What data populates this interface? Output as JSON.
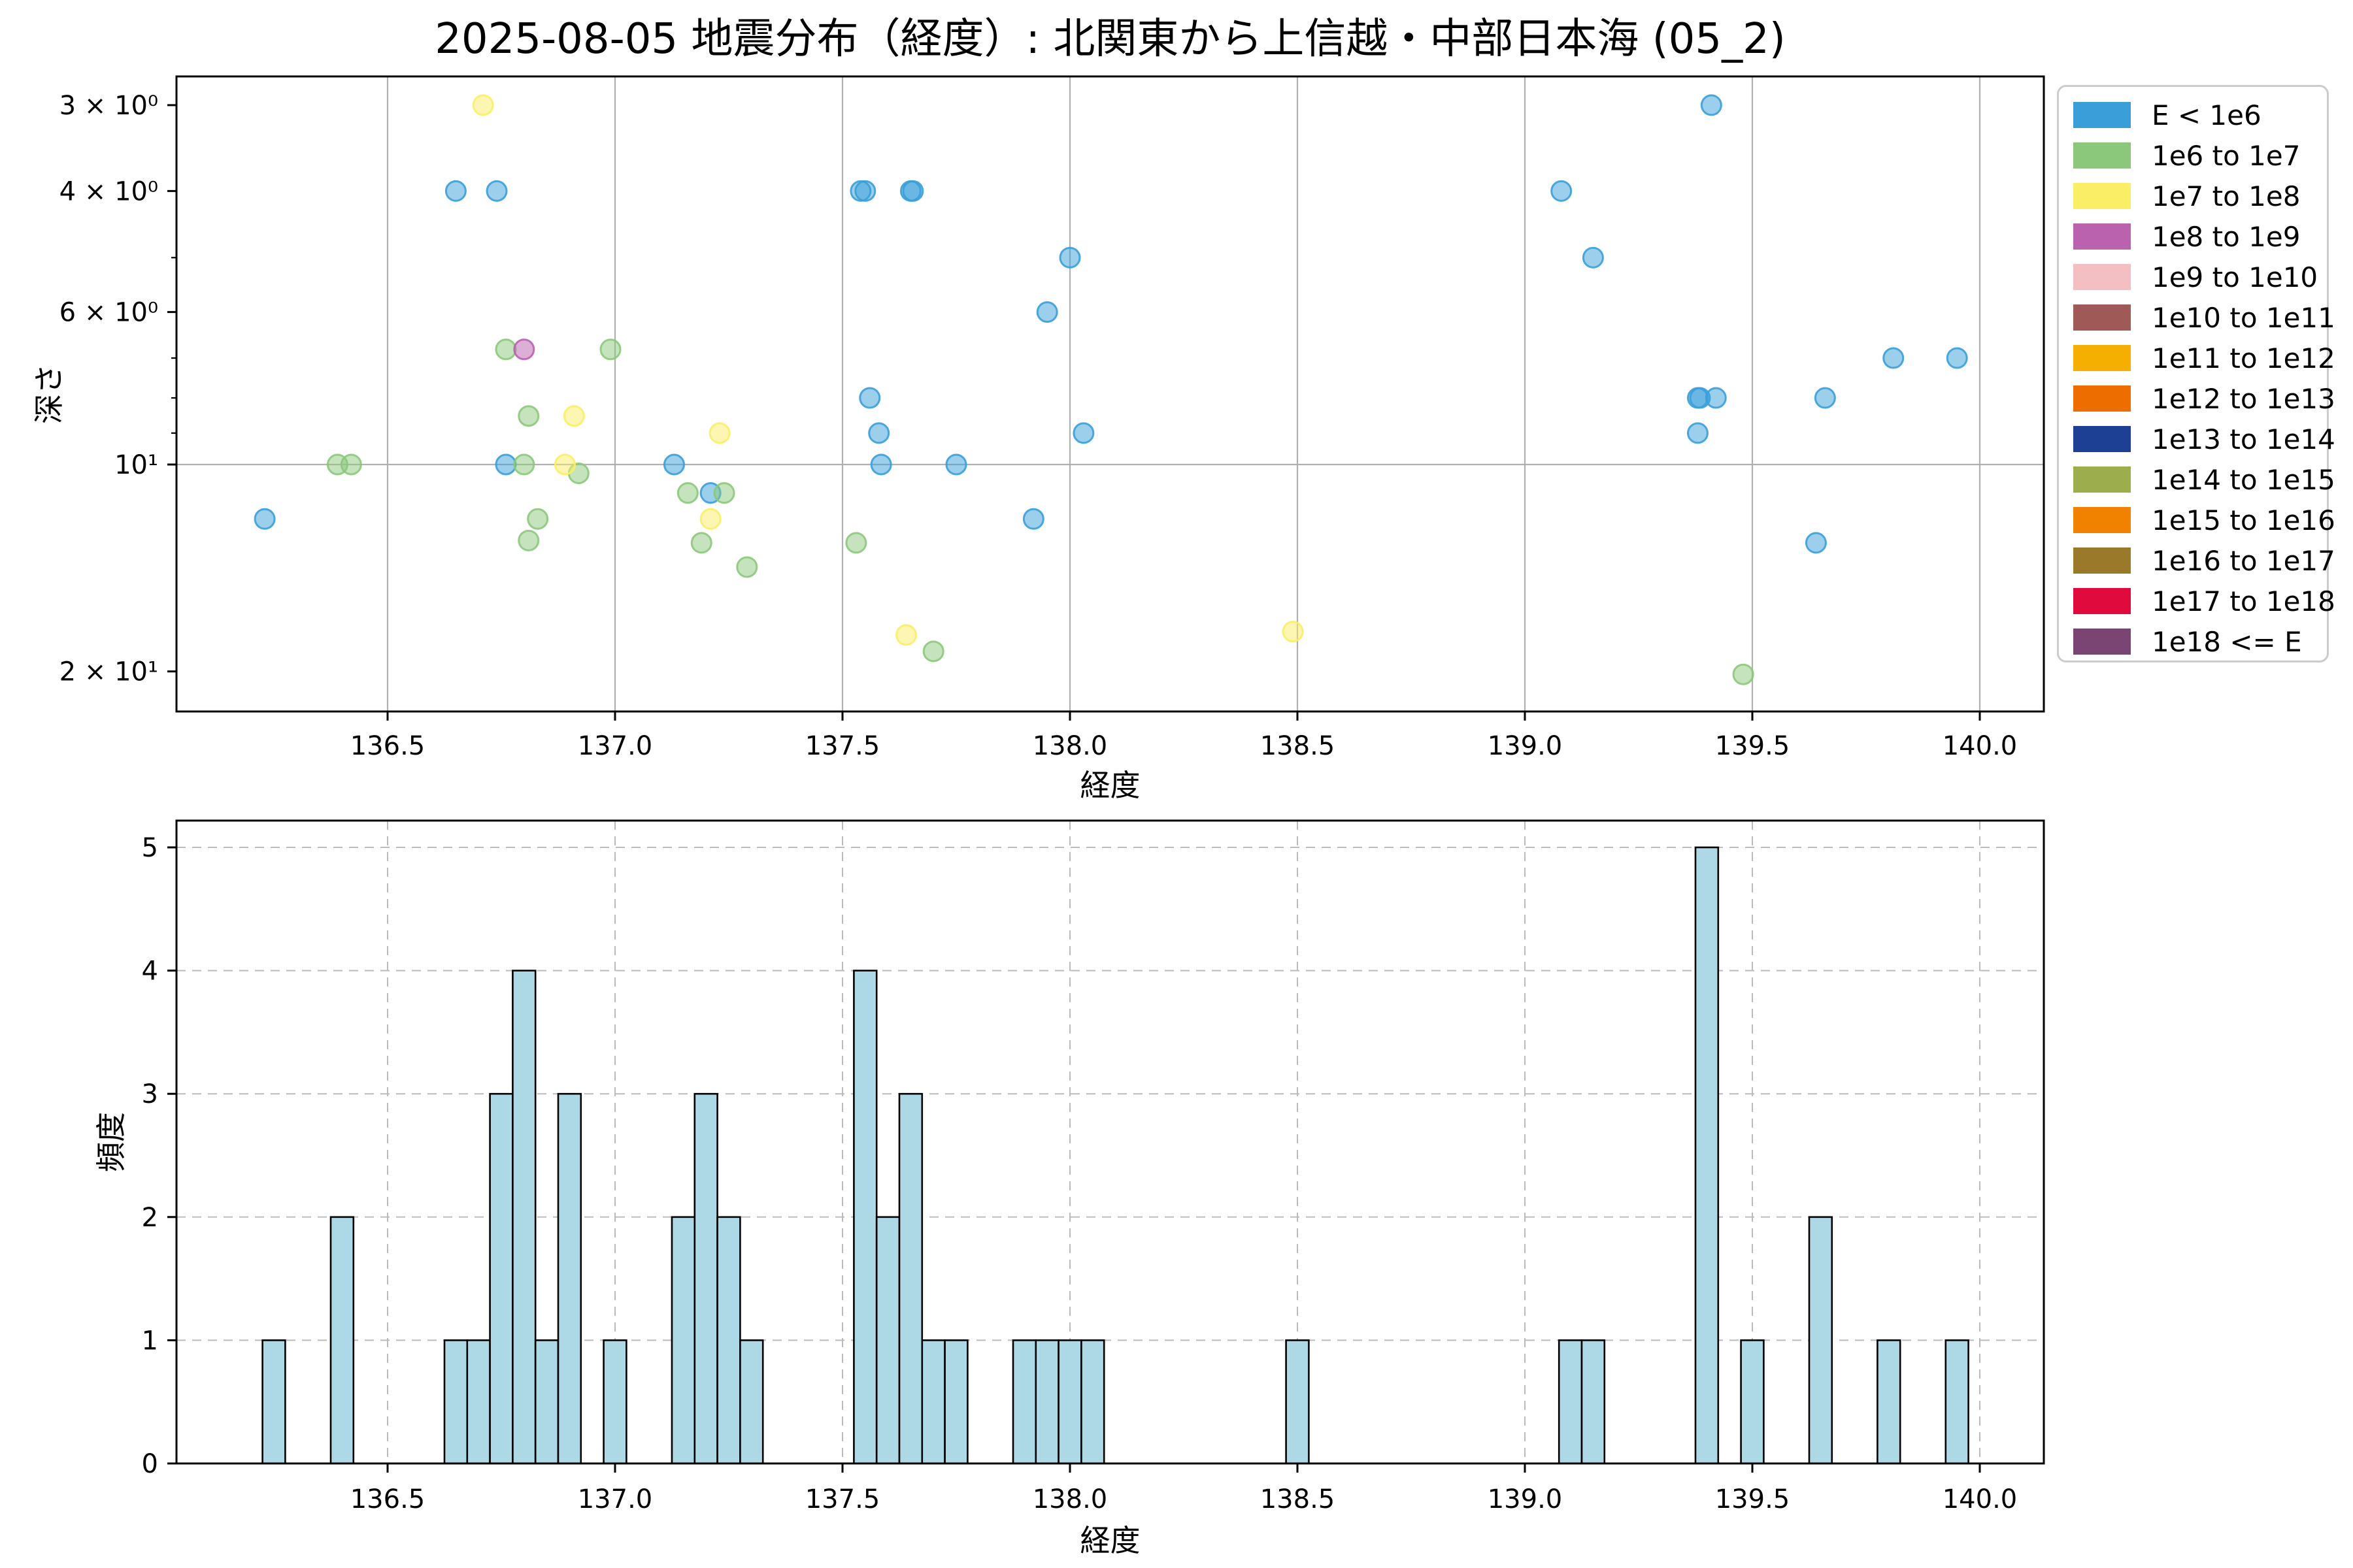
{
  "title": "2025-08-05 地震分布（経度）: 北関東から上信越・中部日本海 (05_2)",
  "legend": {
    "entries": [
      {
        "label": "E < 1e6",
        "color": "#3A9FD9"
      },
      {
        "label": "1e6 to 1e7",
        "color": "#8CC87B"
      },
      {
        "label": "1e7 to 1e8",
        "color": "#FBEE67"
      },
      {
        "label": "1e8 to 1e9",
        "color": "#BA62AE"
      },
      {
        "label": "1e9 to 1e10",
        "color": "#F4BFC2"
      },
      {
        "label": "1e10 to 1e11",
        "color": "#9F5A58"
      },
      {
        "label": "1e11 to 1e12",
        "color": "#F4AF00"
      },
      {
        "label": "1e12 to 1e13",
        "color": "#ED6D00"
      },
      {
        "label": "1e13 to 1e14",
        "color": "#1E4094"
      },
      {
        "label": "1e14 to 1e15",
        "color": "#9BAD4D"
      },
      {
        "label": "1e15 to 1e16",
        "color": "#F08200"
      },
      {
        "label": "1e16 to 1e17",
        "color": "#9A7A2A"
      },
      {
        "label": "1e17 to 1e18",
        "color": "#E00A3C"
      },
      {
        "label": "1e18 <= E",
        "color": "#7A4473"
      }
    ]
  },
  "chart_data": [
    {
      "type": "scatter",
      "xlabel": "経度",
      "ylabel": "深さ",
      "x_ticks": [
        136.5,
        137.0,
        137.5,
        138.0,
        138.5,
        139.0,
        139.5,
        140.0
      ],
      "x_tick_labels": [
        "136.5",
        "137.0",
        "137.5",
        "138.0",
        "138.5",
        "139.0",
        "139.5",
        "140.0"
      ],
      "xlim": [
        136.035,
        140.14
      ],
      "y_scale": "log-inverted",
      "ylim_top_depth": 2.73,
      "ylim_bottom_depth": 22.9,
      "y_ticks": [
        {
          "value": 3,
          "label": "3 × 10⁰"
        },
        {
          "value": 4,
          "label": "4 × 10⁰"
        },
        {
          "value": 6,
          "label": "6 × 10⁰"
        },
        {
          "value": 10,
          "label": "10¹"
        },
        {
          "value": 20,
          "label": "2 × 10¹"
        }
      ],
      "y_minor_ticks": [
        5,
        7,
        8,
        9
      ],
      "grid": {
        "vertical_at_xticks": true,
        "horizontal_at": [
          10
        ],
        "color": "#B0B0B0",
        "style": "solid"
      },
      "series": [
        {
          "name": "E < 1e6",
          "color": "#3A9FD9",
          "points": [
            [
              136.23,
              12.0
            ],
            [
              136.65,
              4.0
            ],
            [
              136.74,
              4.0
            ],
            [
              136.76,
              10.0
            ],
            [
              137.13,
              10.0
            ],
            [
              137.21,
              11.0
            ],
            [
              137.54,
              4.0
            ],
            [
              137.55,
              4.0
            ],
            [
              137.56,
              8.0
            ],
            [
              137.58,
              9.0
            ],
            [
              137.585,
              10.0
            ],
            [
              137.65,
              4.0
            ],
            [
              137.655,
              4.0
            ],
            [
              137.75,
              10.0
            ],
            [
              137.92,
              12.0
            ],
            [
              137.95,
              6.0
            ],
            [
              138.0,
              5.0
            ],
            [
              138.03,
              9.0
            ],
            [
              139.08,
              4.0
            ],
            [
              139.15,
              5.0
            ],
            [
              139.38,
              8.0
            ],
            [
              139.385,
              8.0
            ],
            [
              139.42,
              8.0
            ],
            [
              139.38,
              9.0
            ],
            [
              139.41,
              3.0
            ],
            [
              139.64,
              13.0
            ],
            [
              139.66,
              8.0
            ],
            [
              139.81,
              7.0
            ],
            [
              139.95,
              7.0
            ]
          ]
        },
        {
          "name": "1e6 to 1e7",
          "color": "#8CC87B",
          "points": [
            [
              136.39,
              10.0
            ],
            [
              136.42,
              10.0
            ],
            [
              136.76,
              6.8
            ],
            [
              136.99,
              6.8
            ],
            [
              136.81,
              8.5
            ],
            [
              136.8,
              10.0
            ],
            [
              136.92,
              10.3
            ],
            [
              136.83,
              12.0
            ],
            [
              136.81,
              12.9
            ],
            [
              137.16,
              11.0
            ],
            [
              137.24,
              11.0
            ],
            [
              137.19,
              13.0
            ],
            [
              137.29,
              14.1
            ],
            [
              137.53,
              13.0
            ],
            [
              137.7,
              18.7
            ],
            [
              139.48,
              20.2
            ]
          ]
        },
        {
          "name": "1e7 to 1e8",
          "color": "#FBEE67",
          "points": [
            [
              136.71,
              3.0
            ],
            [
              136.91,
              8.5
            ],
            [
              136.89,
              10.0
            ],
            [
              137.23,
              9.0
            ],
            [
              137.21,
              12.0
            ],
            [
              137.64,
              17.7
            ],
            [
              138.49,
              17.5
            ]
          ]
        },
        {
          "name": "1e8 to 1e9",
          "color": "#BA62AE",
          "points": [
            [
              136.8,
              6.8
            ]
          ]
        }
      ]
    },
    {
      "type": "bar",
      "xlabel": "経度",
      "ylabel": "頻度",
      "x_ticks": [
        136.5,
        137.0,
        137.5,
        138.0,
        138.5,
        139.0,
        139.5,
        140.0
      ],
      "x_tick_labels": [
        "136.5",
        "137.0",
        "137.5",
        "138.0",
        "138.5",
        "139.0",
        "139.5",
        "140.0"
      ],
      "y_ticks": [
        0,
        1,
        2,
        3,
        4,
        5
      ],
      "ylim": [
        0,
        5.22
      ],
      "bar_color": "#ADD8E6",
      "bar_edge_color": "#000000",
      "bin_width": 0.05,
      "grid": {
        "style": "dashed",
        "color": "#BBBBBB"
      },
      "bars": [
        {
          "x": 136.25,
          "count": 1
        },
        {
          "x": 136.4,
          "count": 2
        },
        {
          "x": 136.65,
          "count": 1
        },
        {
          "x": 136.7,
          "count": 1
        },
        {
          "x": 136.75,
          "count": 3
        },
        {
          "x": 136.8,
          "count": 4
        },
        {
          "x": 136.85,
          "count": 1
        },
        {
          "x": 136.9,
          "count": 3
        },
        {
          "x": 137.0,
          "count": 1
        },
        {
          "x": 137.15,
          "count": 2
        },
        {
          "x": 137.2,
          "count": 3
        },
        {
          "x": 137.25,
          "count": 2
        },
        {
          "x": 137.3,
          "count": 1
        },
        {
          "x": 137.55,
          "count": 4
        },
        {
          "x": 137.6,
          "count": 2
        },
        {
          "x": 137.65,
          "count": 3
        },
        {
          "x": 137.7,
          "count": 1
        },
        {
          "x": 137.75,
          "count": 1
        },
        {
          "x": 137.9,
          "count": 1
        },
        {
          "x": 137.95,
          "count": 1
        },
        {
          "x": 138.0,
          "count": 1
        },
        {
          "x": 138.05,
          "count": 1
        },
        {
          "x": 138.5,
          "count": 1
        },
        {
          "x": 139.1,
          "count": 1
        },
        {
          "x": 139.15,
          "count": 1
        },
        {
          "x": 139.4,
          "count": 5
        },
        {
          "x": 139.5,
          "count": 1
        },
        {
          "x": 139.65,
          "count": 2
        },
        {
          "x": 139.8,
          "count": 1
        },
        {
          "x": 139.95,
          "count": 1
        }
      ]
    }
  ]
}
